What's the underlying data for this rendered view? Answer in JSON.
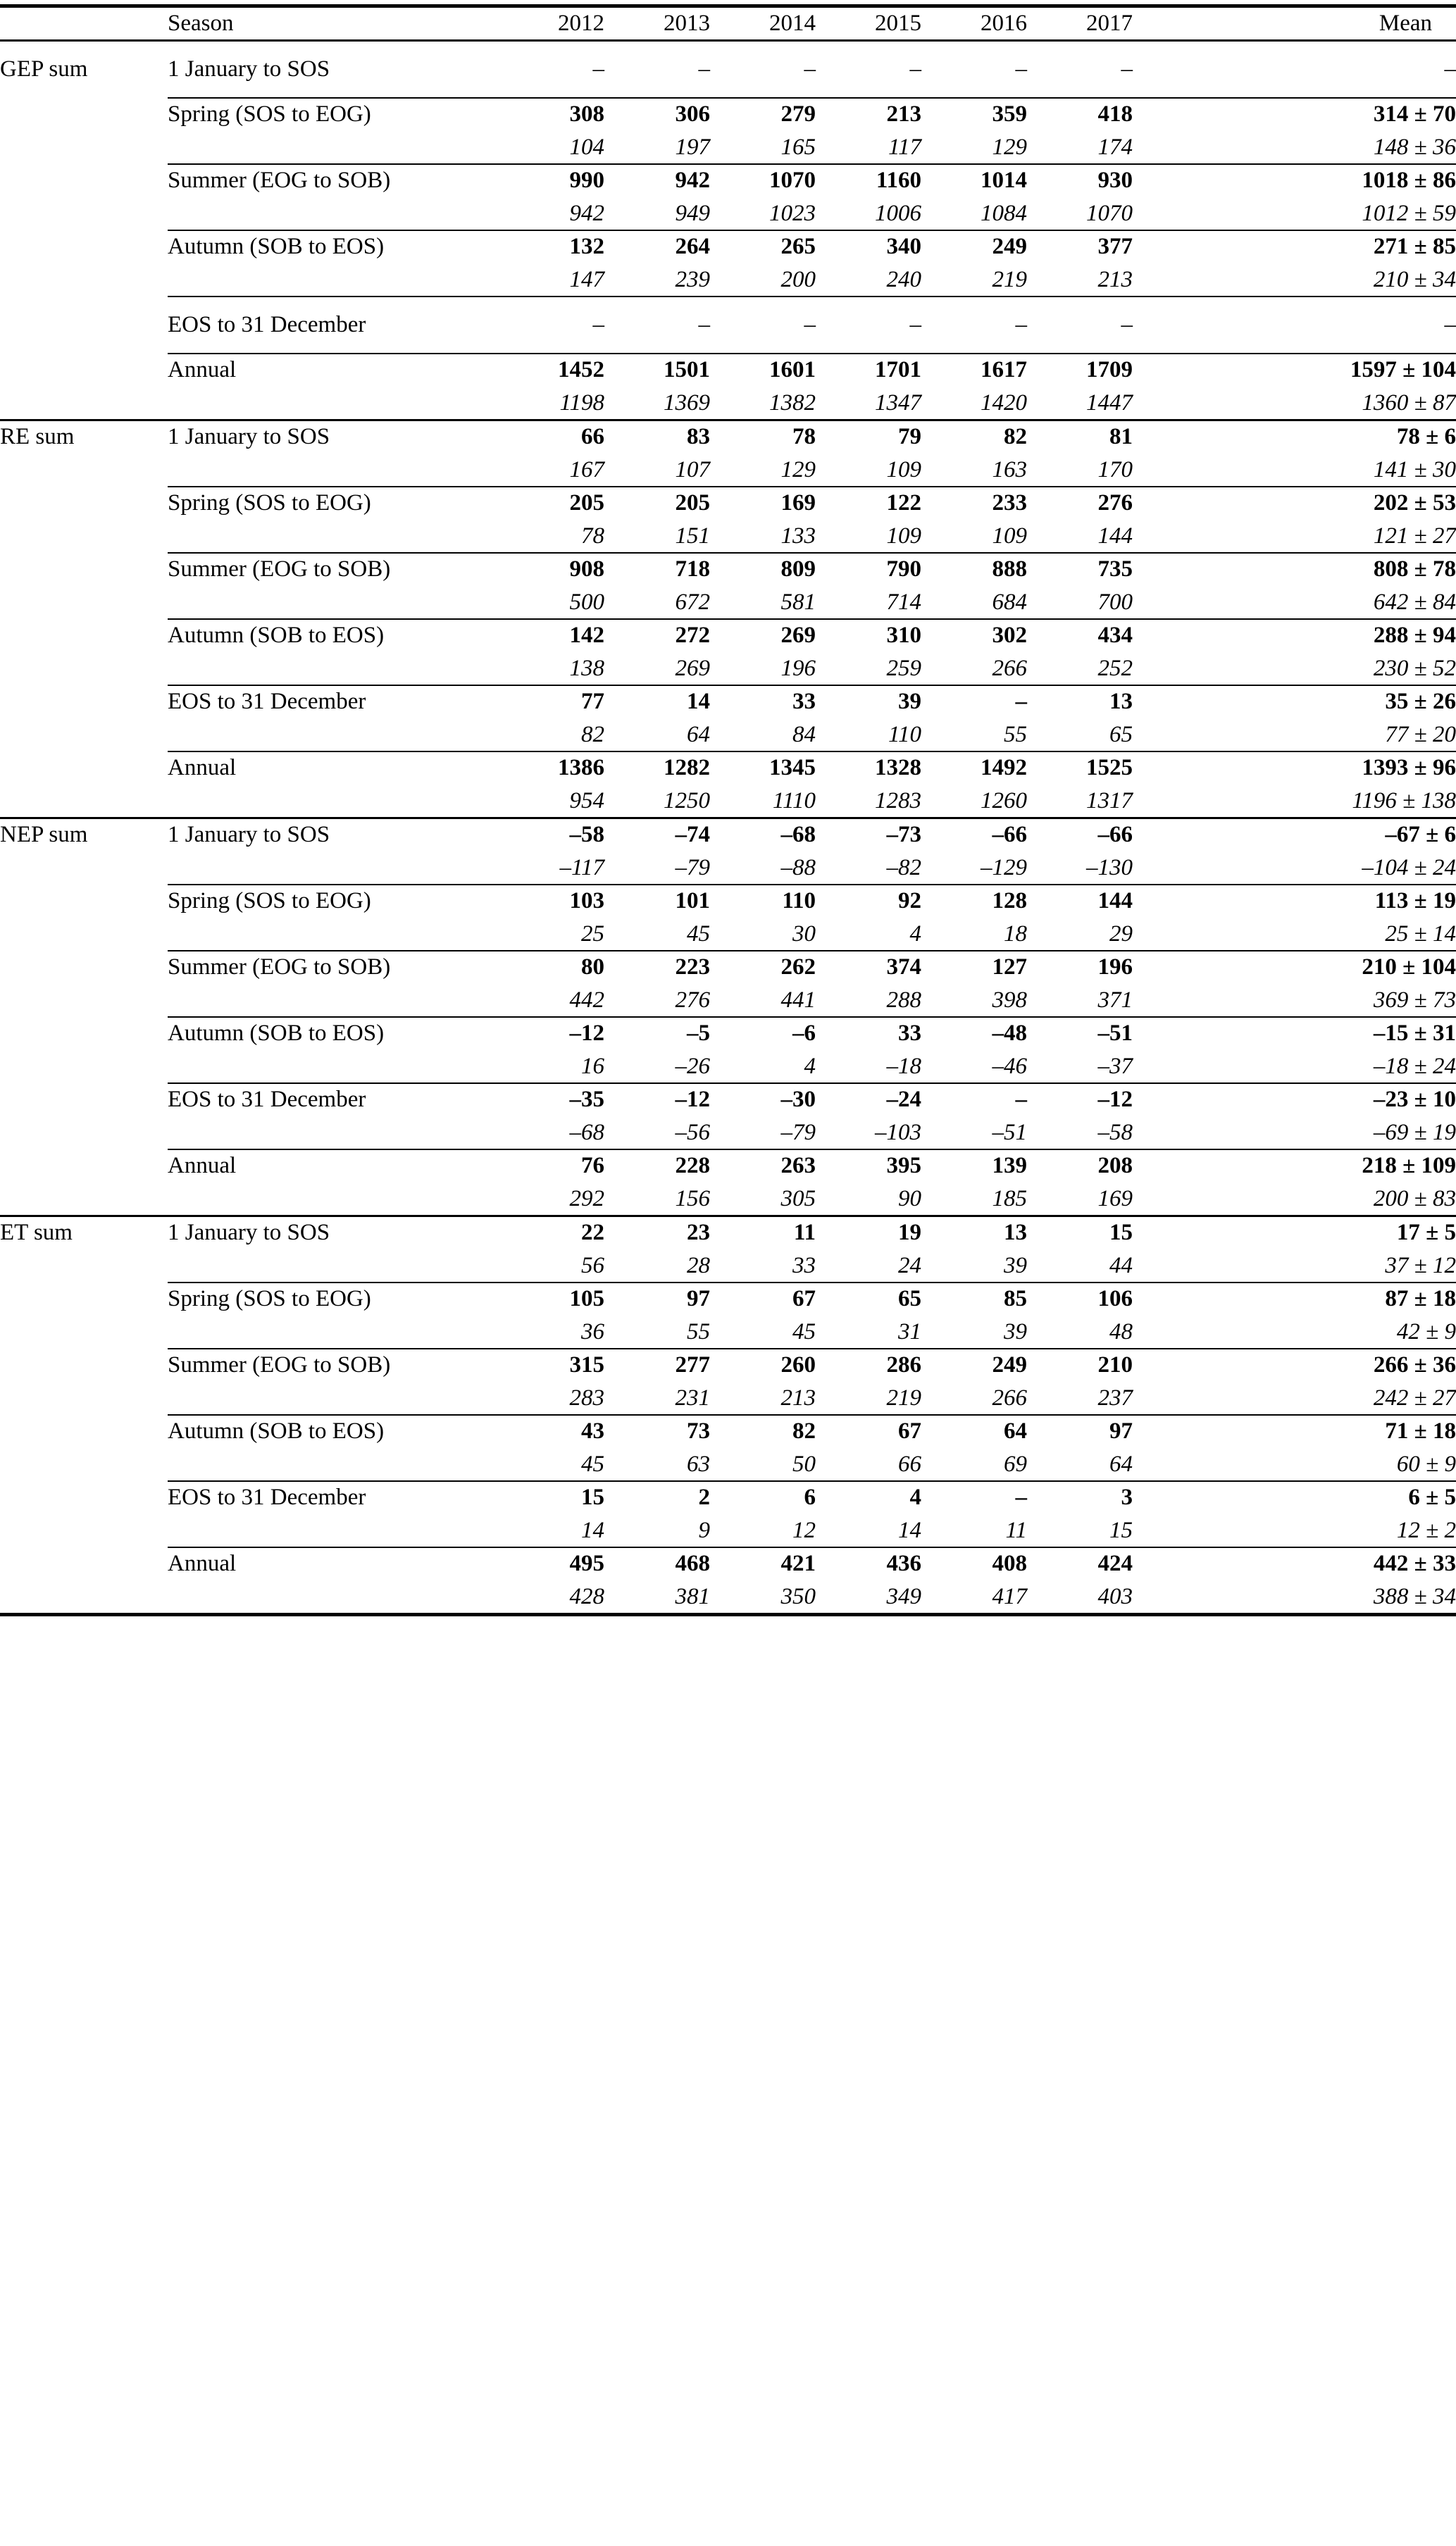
{
  "table": {
    "corner_header": "",
    "columns": [
      "Season",
      "2012",
      "2013",
      "2014",
      "2015",
      "2016",
      "2017",
      "Mean"
    ],
    "groups": [
      {
        "label": "GEP sum",
        "rows": [
          {
            "season": "1 January to SOS",
            "line1": [
              "–",
              "–",
              "–",
              "–",
              "–",
              "–",
              "–"
            ],
            "line2": null
          },
          {
            "season": "Spring (SOS to EOG)",
            "line1": [
              "308",
              "306",
              "279",
              "213",
              "359",
              "418",
              "314 ± 70"
            ],
            "line2": [
              "104",
              "197",
              "165",
              "117",
              "129",
              "174",
              "148 ± 36"
            ]
          },
          {
            "season": "Summer (EOG to SOB)",
            "line1": [
              "990",
              "942",
              "1070",
              "1160",
              "1014",
              "930",
              "1018 ± 86"
            ],
            "line2": [
              "942",
              "949",
              "1023",
              "1006",
              "1084",
              "1070",
              "1012 ± 59"
            ]
          },
          {
            "season": "Autumn (SOB to EOS)",
            "line1": [
              "132",
              "264",
              "265",
              "340",
              "249",
              "377",
              "271 ± 85"
            ],
            "line2": [
              "147",
              "239",
              "200",
              "240",
              "219",
              "213",
              "210 ± 34"
            ]
          },
          {
            "season": "EOS to 31 December",
            "line1": [
              "–",
              "–",
              "–",
              "–",
              "–",
              "–",
              "–"
            ],
            "line2": null
          },
          {
            "season": "Annual",
            "line1": [
              "1452",
              "1501",
              "1601",
              "1701",
              "1617",
              "1709",
              "1597 ± 104"
            ],
            "line2": [
              "1198",
              "1369",
              "1382",
              "1347",
              "1420",
              "1447",
              "1360 ± 87"
            ]
          }
        ]
      },
      {
        "label": "RE sum",
        "rows": [
          {
            "season": "1 January to SOS",
            "line1": [
              "66",
              "83",
              "78",
              "79",
              "82",
              "81",
              "78 ± 6"
            ],
            "line2": [
              "167",
              "107",
              "129",
              "109",
              "163",
              "170",
              "141 ± 30"
            ]
          },
          {
            "season": "Spring (SOS to EOG)",
            "line1": [
              "205",
              "205",
              "169",
              "122",
              "233",
              "276",
              "202 ± 53"
            ],
            "line2": [
              "78",
              "151",
              "133",
              "109",
              "109",
              "144",
              "121 ± 27"
            ]
          },
          {
            "season": "Summer (EOG to SOB)",
            "line1": [
              "908",
              "718",
              "809",
              "790",
              "888",
              "735",
              "808 ± 78"
            ],
            "line2": [
              "500",
              "672",
              "581",
              "714",
              "684",
              "700",
              "642 ± 84"
            ]
          },
          {
            "season": "Autumn (SOB to EOS)",
            "line1": [
              "142",
              "272",
              "269",
              "310",
              "302",
              "434",
              "288 ± 94"
            ],
            "line2": [
              "138",
              "269",
              "196",
              "259",
              "266",
              "252",
              "230 ± 52"
            ]
          },
          {
            "season": "EOS to 31 December",
            "line1": [
              "77",
              "14",
              "33",
              "39",
              "–",
              "13",
              "35 ± 26"
            ],
            "line2": [
              "82",
              "64",
              "84",
              "110",
              "55",
              "65",
              "77 ± 20"
            ]
          },
          {
            "season": "Annual",
            "line1": [
              "1386",
              "1282",
              "1345",
              "1328",
              "1492",
              "1525",
              "1393 ± 96"
            ],
            "line2": [
              "954",
              "1250",
              "1110",
              "1283",
              "1260",
              "1317",
              "1196 ± 138"
            ]
          }
        ]
      },
      {
        "label": "NEP sum",
        "rows": [
          {
            "season": "1 January to SOS",
            "line1": [
              "–58",
              "–74",
              "–68",
              "–73",
              "–66",
              "–66",
              "–67 ± 6"
            ],
            "line2": [
              "–117",
              "–79",
              "–88",
              "–82",
              "–129",
              "–130",
              "–104 ± 24"
            ]
          },
          {
            "season": "Spring (SOS to EOG)",
            "line1": [
              "103",
              "101",
              "110",
              "92",
              "128",
              "144",
              "113 ± 19"
            ],
            "line2": [
              "25",
              "45",
              "30",
              "4",
              "18",
              "29",
              "25 ± 14"
            ]
          },
          {
            "season": "Summer (EOG to SOB)",
            "line1": [
              "80",
              "223",
              "262",
              "374",
              "127",
              "196",
              "210 ± 104"
            ],
            "line2": [
              "442",
              "276",
              "441",
              "288",
              "398",
              "371",
              "369 ± 73"
            ]
          },
          {
            "season": "Autumn (SOB to EOS)",
            "line1": [
              "–12",
              "–5",
              "–6",
              "33",
              "–48",
              "–51",
              "–15 ± 31"
            ],
            "line2": [
              "16",
              "–26",
              "4",
              "–18",
              "–46",
              "–37",
              "–18 ± 24"
            ]
          },
          {
            "season": "EOS to 31 December",
            "line1": [
              "–35",
              "–12",
              "–30",
              "–24",
              "–",
              "–12",
              "–23 ± 10"
            ],
            "line2": [
              "–68",
              "–56",
              "–79",
              "–103",
              "–51",
              "–58",
              "–69 ± 19"
            ]
          },
          {
            "season": "Annual",
            "line1": [
              "76",
              "228",
              "263",
              "395",
              "139",
              "208",
              "218 ± 109"
            ],
            "line2": [
              "292",
              "156",
              "305",
              "90",
              "185",
              "169",
              "200 ± 83"
            ]
          }
        ]
      },
      {
        "label": "ET sum",
        "rows": [
          {
            "season": "1 January to SOS",
            "line1": [
              "22",
              "23",
              "11",
              "19",
              "13",
              "15",
              "17 ± 5"
            ],
            "line2": [
              "56",
              "28",
              "33",
              "24",
              "39",
              "44",
              "37 ± 12"
            ]
          },
          {
            "season": "Spring (SOS to EOG)",
            "line1": [
              "105",
              "97",
              "67",
              "65",
              "85",
              "106",
              "87 ± 18"
            ],
            "line2": [
              "36",
              "55",
              "45",
              "31",
              "39",
              "48",
              "42 ± 9"
            ]
          },
          {
            "season": "Summer (EOG to SOB)",
            "line1": [
              "315",
              "277",
              "260",
              "286",
              "249",
              "210",
              "266 ± 36"
            ],
            "line2": [
              "283",
              "231",
              "213",
              "219",
              "266",
              "237",
              "242 ± 27"
            ]
          },
          {
            "season": "Autumn (SOB to EOS)",
            "line1": [
              "43",
              "73",
              "82",
              "67",
              "64",
              "97",
              "71 ± 18"
            ],
            "line2": [
              "45",
              "63",
              "50",
              "66",
              "69",
              "64",
              "60 ± 9"
            ]
          },
          {
            "season": "EOS to 31 December",
            "line1": [
              "15",
              "2",
              "6",
              "4",
              "–",
              "3",
              "6 ± 5"
            ],
            "line2": [
              "14",
              "9",
              "12",
              "14",
              "11",
              "15",
              "12 ± 2"
            ]
          },
          {
            "season": "Annual",
            "line1": [
              "495",
              "468",
              "421",
              "436",
              "408",
              "424",
              "442 ± 33"
            ],
            "line2": [
              "428",
              "381",
              "350",
              "349",
              "417",
              "403",
              "388 ± 34"
            ]
          }
        ]
      }
    ]
  }
}
